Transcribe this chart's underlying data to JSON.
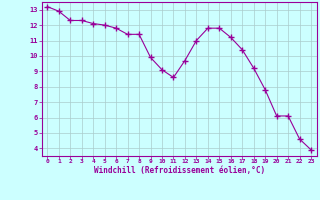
{
  "x": [
    0,
    1,
    2,
    3,
    4,
    5,
    6,
    7,
    8,
    9,
    10,
    11,
    12,
    13,
    14,
    15,
    16,
    17,
    18,
    19,
    20,
    21,
    22,
    23
  ],
  "y": [
    13.2,
    12.9,
    12.3,
    12.3,
    12.1,
    12.0,
    11.8,
    11.4,
    11.4,
    9.9,
    9.1,
    8.6,
    9.7,
    11.0,
    11.8,
    11.8,
    11.2,
    10.4,
    9.2,
    7.8,
    6.1,
    6.1,
    4.6,
    3.9
  ],
  "line_color": "#990099",
  "marker": "+",
  "marker_size": 4,
  "background_color": "#ccffff",
  "grid_color": "#aacccc",
  "xlabel": "Windchill (Refroidissement éolien,°C)",
  "xlabel_color": "#990099",
  "tick_color": "#990099",
  "ylabel_ticks": [
    4,
    5,
    6,
    7,
    8,
    9,
    10,
    11,
    12,
    13
  ],
  "xlim": [
    -0.5,
    23.5
  ],
  "ylim": [
    3.5,
    13.5
  ],
  "figsize": [
    3.2,
    2.0
  ],
  "dpi": 100
}
